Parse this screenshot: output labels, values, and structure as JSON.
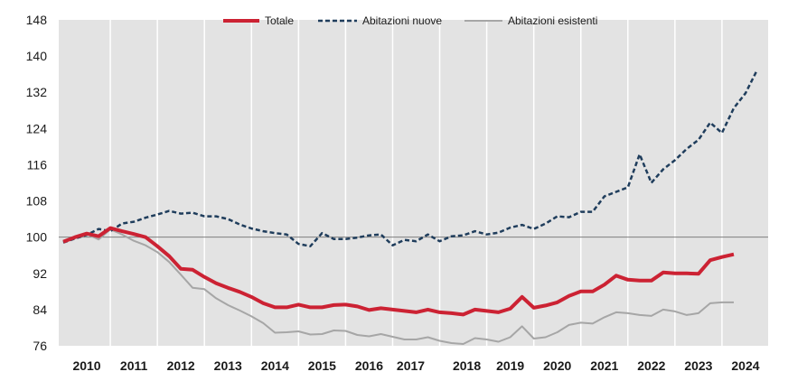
{
  "chart_data": {
    "type": "line",
    "title": "",
    "xlabel": "",
    "ylabel": "",
    "ylim": [
      76,
      148
    ],
    "yticks": [
      76,
      84,
      92,
      100,
      108,
      116,
      124,
      132,
      140,
      148
    ],
    "reference_line": 100,
    "x_start": 2010.0,
    "x_step": 0.25,
    "x_tick_labels": [
      "2010",
      "2011",
      "2012",
      "2013",
      "2014",
      "2015",
      "2016",
      "2017",
      "2018",
      "2019",
      "2020",
      "2021",
      "2022",
      "2023",
      "2024"
    ],
    "legend_position": "top-center",
    "series": [
      {
        "name": "Totale",
        "color": "#cc2233",
        "style": "solid-thick",
        "values": [
          99.0,
          100.0,
          100.8,
          100.2,
          102.0,
          101.3,
          100.7,
          100.0,
          98.0,
          95.8,
          93.0,
          92.8,
          91.2,
          89.8,
          88.8,
          87.9,
          86.8,
          85.4,
          84.5,
          84.5,
          85.1,
          84.5,
          84.5,
          85.0,
          85.1,
          84.7,
          83.9,
          84.3,
          84.0,
          83.7,
          83.4,
          84.0,
          83.4,
          83.2,
          82.9,
          84.0,
          83.7,
          83.4,
          84.2,
          86.8,
          84.4,
          84.9,
          85.6,
          87.0,
          88.0,
          88.0,
          89.5,
          91.5,
          90.6,
          90.4,
          90.4,
          92.2,
          92.0,
          92.0,
          91.9,
          94.9,
          95.6,
          96.2
        ]
      },
      {
        "name": "Abitazioni nuove",
        "color": "#1f3d5c",
        "style": "dashed",
        "values": [
          98.8,
          99.7,
          100.5,
          101.8,
          101.3,
          103.0,
          103.4,
          104.3,
          105.0,
          105.8,
          105.2,
          105.4,
          104.6,
          104.6,
          104.0,
          102.8,
          101.9,
          101.3,
          100.9,
          100.6,
          98.5,
          98.0,
          100.9,
          99.6,
          99.6,
          99.9,
          100.4,
          100.6,
          98.2,
          99.4,
          99.1,
          100.6,
          99.1,
          100.2,
          100.4,
          101.3,
          100.6,
          101.0,
          102.1,
          102.7,
          101.8,
          103.0,
          104.6,
          104.4,
          105.6,
          105.6,
          109.0,
          110.0,
          111.0,
          118.3,
          112.0,
          115.0,
          117.0,
          119.5,
          121.5,
          125.3,
          123.0,
          128.5,
          131.8,
          137.0
        ]
      },
      {
        "name": "Abitazioni esistenti",
        "color": "#a6a6a6",
        "style": "solid",
        "values": [
          99.0,
          99.8,
          100.7,
          99.5,
          101.7,
          100.6,
          99.2,
          98.2,
          96.7,
          94.5,
          91.7,
          88.8,
          88.5,
          86.5,
          85.0,
          83.8,
          82.5,
          81.0,
          78.9,
          79.0,
          79.2,
          78.5,
          78.6,
          79.4,
          79.3,
          78.4,
          78.1,
          78.6,
          78.0,
          77.4,
          77.4,
          77.9,
          77.1,
          76.6,
          76.4,
          77.7,
          77.4,
          76.9,
          77.9,
          80.3,
          77.6,
          77.9,
          79.0,
          80.6,
          81.1,
          80.9,
          82.3,
          83.4,
          83.2,
          82.8,
          82.6,
          84.0,
          83.6,
          82.8,
          83.2,
          85.4,
          85.6,
          85.6
        ]
      }
    ]
  }
}
